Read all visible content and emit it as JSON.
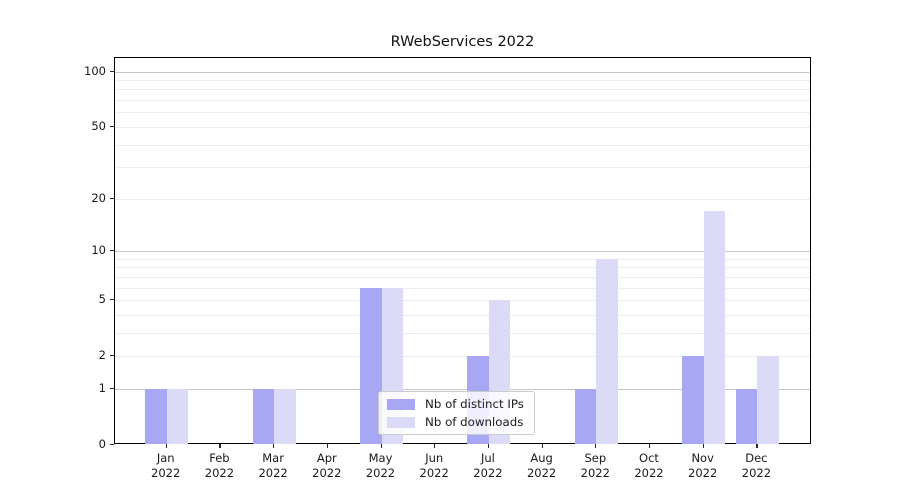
{
  "figure": {
    "title": "RWebServices 2022"
  },
  "chart_data": {
    "type": "bar",
    "title": "RWebServices 2022",
    "categories": [
      "Jan 2022",
      "Feb 2022",
      "Mar 2022",
      "Apr 2022",
      "May 2022",
      "Jun 2022",
      "Jul 2022",
      "Aug 2022",
      "Sep 2022",
      "Oct 2022",
      "Nov 2022",
      "Dec 2022"
    ],
    "series": [
      {
        "name": "Nb of distinct IPs",
        "color": "#a7a7f3",
        "values": [
          1,
          0,
          1,
          0,
          6,
          0,
          2,
          0,
          1,
          0,
          2,
          1
        ]
      },
      {
        "name": "Nb of downloads",
        "color": "#dbdbf8",
        "values": [
          1,
          0,
          1,
          0,
          6,
          0,
          5,
          0,
          9,
          0,
          17,
          2
        ]
      }
    ],
    "xlabel": "",
    "ylabel": "",
    "yscale": "log1p",
    "ylim": [
      0,
      118
    ],
    "yticks": [
      0,
      1,
      2,
      5,
      10,
      20,
      50,
      100
    ],
    "major_gridlines": [
      1,
      10,
      100
    ],
    "minor_gridlines": [
      2,
      3,
      4,
      5,
      6,
      7,
      8,
      9,
      20,
      30,
      40,
      50,
      60,
      70,
      80,
      90
    ],
    "grid": true,
    "legend_position": "lower center",
    "bar_layout": "grouped-touching"
  },
  "colors": {
    "background": "#ffffff",
    "spine": "#000000",
    "major_grid": "#c6c6c6",
    "minor_grid": "#ededed",
    "text": "#1a1a1a"
  }
}
